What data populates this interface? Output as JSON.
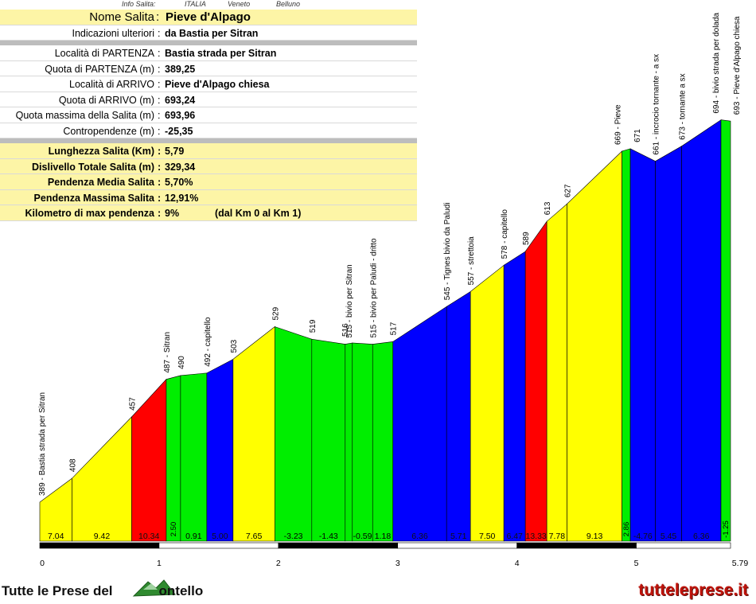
{
  "info_header": {
    "label": "Info Salita:",
    "country": "ITALIA",
    "region": "Veneto",
    "province": "Belluno"
  },
  "info_rows": [
    {
      "label": "Nome Salita",
      "value": "Pieve d'Alpago",
      "style": "big"
    },
    {
      "label": "Indicazioni ulteriori",
      "value": "da Bastia per Sitran",
      "style": "normal"
    },
    {
      "label": "Località di PARTENZA",
      "value": "Bastia strada per Sitran",
      "style": "normal"
    },
    {
      "label": "Quota di PARTENZA (m)",
      "value": "389,25",
      "style": "normal"
    },
    {
      "label": "Località di ARRIVO",
      "value": "Pieve d'Alpago chiesa",
      "style": "normal"
    },
    {
      "label": "Quota di ARRIVO (m)",
      "value": "693,24",
      "style": "normal"
    },
    {
      "label": "Quota massima della Salita (m)",
      "value": "693,96",
      "style": "normal"
    },
    {
      "label": "Contropendenze (m)",
      "value": "-25,35",
      "style": "normal"
    },
    {
      "label": "Lunghezza Salita (Km)",
      "value": "5,79",
      "style": "summary"
    },
    {
      "label": "Dislivello Totale Salita (m)",
      "value": "329,34",
      "style": "summary"
    },
    {
      "label": "Pendenza Media Salita",
      "value": "5,70%",
      "style": "summary"
    },
    {
      "label": "Pendenza Massima Salita",
      "value": "12,91%",
      "style": "summary"
    },
    {
      "label": "Kilometro di max pendenza",
      "value": "9%",
      "style": "summary",
      "note": "(dal Km 0 al Km 1)"
    }
  ],
  "footer": {
    "left_text_1": "Tutte le Prese del",
    "left_text_2": "ontello",
    "right_text": "tutteleprese.it"
  },
  "chart_data": {
    "type": "area",
    "x_unit": "km",
    "y_unit": "m",
    "xlim": [
      0,
      5.79
    ],
    "x_ticks": [
      {
        "value": 0,
        "label": "0"
      },
      {
        "value": 1,
        "label": "1"
      },
      {
        "value": 2,
        "label": "2"
      },
      {
        "value": 3,
        "label": "3"
      },
      {
        "value": 4,
        "label": "4"
      },
      {
        "value": 5,
        "label": "5"
      },
      {
        "value": 5.79,
        "label": "5.79"
      }
    ],
    "profile_points": [
      {
        "x": 0,
        "y": 389,
        "label": "389 - Bastia strada per Sitran"
      },
      {
        "x": 0.27,
        "y": 408,
        "label": "408"
      },
      {
        "x": 0.77,
        "y": 457,
        "label": "457"
      },
      {
        "x": 1.06,
        "y": 487,
        "label": "487 - Sitran"
      },
      {
        "x": 1.18,
        "y": 490,
        "label": "490"
      },
      {
        "x": 1.4,
        "y": 492,
        "label": "492 - capitello"
      },
      {
        "x": 1.62,
        "y": 503,
        "label": "503"
      },
      {
        "x": 1.97,
        "y": 529,
        "label": "529"
      },
      {
        "x": 2.28,
        "y": 519,
        "label": "519"
      },
      {
        "x": 2.56,
        "y": 515,
        "label": "515 - bivio per Sitran"
      },
      {
        "x": 2.62,
        "y": 516,
        "label": "516"
      },
      {
        "x": 2.79,
        "y": 515,
        "label": "515 - bivio per Paludi - dritto"
      },
      {
        "x": 2.96,
        "y": 517,
        "label": "517"
      },
      {
        "x": 3.41,
        "y": 545,
        "label": "545 - Tignes bivio da Paludi"
      },
      {
        "x": 3.61,
        "y": 557,
        "label": "557 - strettoia"
      },
      {
        "x": 3.89,
        "y": 578,
        "label": "578 - capitello"
      },
      {
        "x": 4.07,
        "y": 589,
        "label": "589"
      },
      {
        "x": 4.25,
        "y": 613,
        "label": "613"
      },
      {
        "x": 4.42,
        "y": 627,
        "label": "627"
      },
      {
        "x": 4.88,
        "y": 669,
        "label": "669 - Pieve"
      },
      {
        "x": 4.95,
        "y": 671,
        "label": "671"
      },
      {
        "x": 5.16,
        "y": 661,
        "label": "661 - incrocio tornante - a sx"
      },
      {
        "x": 5.38,
        "y": 673,
        "label": "673 - tornante a sx"
      },
      {
        "x": 5.71,
        "y": 694,
        "label": "694 - bivio strada per dolada"
      },
      {
        "x": 5.79,
        "y": 693,
        "label": "693 - Pieve d'Alpago chiesa"
      }
    ],
    "segments": [
      {
        "x0": 0,
        "x1": 0.27,
        "slope": "7.04",
        "color": "#ffff00"
      },
      {
        "x0": 0.27,
        "x1": 0.77,
        "slope": "9.42",
        "color": "#ffff00"
      },
      {
        "x0": 0.77,
        "x1": 1.06,
        "slope": "10.34",
        "color": "#ff0000"
      },
      {
        "x0": 1.06,
        "x1": 1.18,
        "slope": "2.50",
        "color": "#00ee00"
      },
      {
        "x0": 1.18,
        "x1": 1.4,
        "slope": "0.91",
        "color": "#00ee00"
      },
      {
        "x0": 1.4,
        "x1": 1.62,
        "slope": "5.00",
        "color": "#0000ff"
      },
      {
        "x0": 1.62,
        "x1": 1.97,
        "slope": "7.65",
        "color": "#ffff00"
      },
      {
        "x0": 1.97,
        "x1": 2.28,
        "slope": "-3.23",
        "color": "#00ee00"
      },
      {
        "x0": 2.28,
        "x1": 2.56,
        "slope": "-1.43",
        "color": "#00ee00"
      },
      {
        "x0": 2.56,
        "x1": 2.62,
        "slope": "",
        "color": "#00ee00"
      },
      {
        "x0": 2.62,
        "x1": 2.79,
        "slope": "-0.59",
        "color": "#00ee00"
      },
      {
        "x0": 2.79,
        "x1": 2.96,
        "slope": "1.18",
        "color": "#00ee00"
      },
      {
        "x0": 2.96,
        "x1": 3.41,
        "slope": "6.36",
        "color": "#0000ff"
      },
      {
        "x0": 3.41,
        "x1": 3.61,
        "slope": "5.71",
        "color": "#0000ff"
      },
      {
        "x0": 3.61,
        "x1": 3.89,
        "slope": "7.50",
        "color": "#ffff00"
      },
      {
        "x0": 3.89,
        "x1": 4.07,
        "slope": "6.47",
        "color": "#0000ff"
      },
      {
        "x0": 4.07,
        "x1": 4.25,
        "slope": "13.33",
        "color": "#ff0000"
      },
      {
        "x0": 4.25,
        "x1": 4.42,
        "slope": "7.78",
        "color": "#ffff00"
      },
      {
        "x0": 4.42,
        "x1": 4.88,
        "slope": "9.13",
        "color": "#ffff00"
      },
      {
        "x0": 4.88,
        "x1": 4.95,
        "slope": "2.86",
        "color": "#00ee00"
      },
      {
        "x0": 4.95,
        "x1": 5.16,
        "slope": "-4.76",
        "color": "#0000ff"
      },
      {
        "x0": 5.16,
        "x1": 5.38,
        "slope": "5.45",
        "color": "#0000ff"
      },
      {
        "x0": 5.38,
        "x1": 5.71,
        "slope": "6.36",
        "color": "#0000ff"
      },
      {
        "x0": 5.71,
        "x1": 5.79,
        "slope": "-1.25",
        "color": "#00ee00"
      }
    ],
    "km_bar_colors": [
      "#000000",
      "#ffffff"
    ]
  }
}
